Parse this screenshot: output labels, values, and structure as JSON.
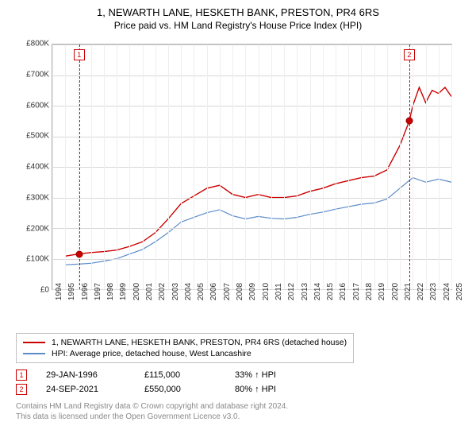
{
  "title": "1, NEWARTH LANE, HESKETH BANK, PRESTON, PR4 6RS",
  "subtitle": "Price paid vs. HM Land Registry's House Price Index (HPI)",
  "chart": {
    "type": "line",
    "background_color": "#ffffff",
    "grid_color": "#d8d8d8",
    "axis_color": "#b0b0b0",
    "label_fontsize": 10,
    "title_fontsize": 13,
    "x": {
      "min": 1994,
      "max": 2025,
      "tick_step": 1,
      "labels": [
        "1994",
        "1995",
        "1996",
        "1997",
        "1998",
        "1999",
        "2000",
        "2001",
        "2002",
        "2003",
        "2004",
        "2005",
        "2006",
        "2007",
        "2008",
        "2009",
        "2010",
        "2011",
        "2012",
        "2013",
        "2014",
        "2015",
        "2016",
        "2017",
        "2018",
        "2019",
        "2020",
        "2021",
        "2022",
        "2023",
        "2024",
        "2025"
      ]
    },
    "y": {
      "min": 0,
      "max": 800000,
      "tick_step": 100000,
      "labels": [
        "£0",
        "£100K",
        "£200K",
        "£300K",
        "£400K",
        "£500K",
        "£600K",
        "£700K",
        "£800K"
      ]
    },
    "series": [
      {
        "id": "price_paid",
        "label": "1, NEWARTH LANE, HESKETH BANK, PRESTON, PR4 6RS (detached house)",
        "color": "#cc0000",
        "line_width": 1.4,
        "points": [
          [
            1995,
            108000
          ],
          [
            1996,
            115000
          ],
          [
            1997,
            120000
          ],
          [
            1998,
            123000
          ],
          [
            1999,
            128000
          ],
          [
            2000,
            140000
          ],
          [
            2001,
            155000
          ],
          [
            2002,
            185000
          ],
          [
            2003,
            230000
          ],
          [
            2004,
            280000
          ],
          [
            2005,
            305000
          ],
          [
            2006,
            330000
          ],
          [
            2007,
            340000
          ],
          [
            2008,
            310000
          ],
          [
            2009,
            300000
          ],
          [
            2010,
            310000
          ],
          [
            2011,
            300000
          ],
          [
            2012,
            300000
          ],
          [
            2013,
            305000
          ],
          [
            2014,
            320000
          ],
          [
            2015,
            330000
          ],
          [
            2016,
            345000
          ],
          [
            2017,
            355000
          ],
          [
            2018,
            365000
          ],
          [
            2019,
            370000
          ],
          [
            2020,
            390000
          ],
          [
            2021,
            470000
          ],
          [
            2021.73,
            550000
          ],
          [
            2022,
            600000
          ],
          [
            2022.5,
            660000
          ],
          [
            2023,
            610000
          ],
          [
            2023.5,
            650000
          ],
          [
            2024,
            640000
          ],
          [
            2024.5,
            660000
          ],
          [
            2025,
            630000
          ]
        ]
      },
      {
        "id": "hpi",
        "label": "HPI: Average price, detached house, West Lancashire",
        "color": "#5b8bc9",
        "line_width": 1.2,
        "points": [
          [
            1995,
            80000
          ],
          [
            1996,
            82000
          ],
          [
            1997,
            85000
          ],
          [
            1998,
            92000
          ],
          [
            1999,
            100000
          ],
          [
            2000,
            115000
          ],
          [
            2001,
            130000
          ],
          [
            2002,
            155000
          ],
          [
            2003,
            185000
          ],
          [
            2004,
            220000
          ],
          [
            2005,
            235000
          ],
          [
            2006,
            250000
          ],
          [
            2007,
            260000
          ],
          [
            2008,
            240000
          ],
          [
            2009,
            230000
          ],
          [
            2010,
            238000
          ],
          [
            2011,
            232000
          ],
          [
            2012,
            230000
          ],
          [
            2013,
            235000
          ],
          [
            2014,
            245000
          ],
          [
            2015,
            252000
          ],
          [
            2016,
            262000
          ],
          [
            2017,
            270000
          ],
          [
            2018,
            278000
          ],
          [
            2019,
            282000
          ],
          [
            2020,
            295000
          ],
          [
            2021,
            330000
          ],
          [
            2022,
            365000
          ],
          [
            2023,
            350000
          ],
          [
            2024,
            360000
          ],
          [
            2025,
            350000
          ]
        ]
      }
    ],
    "events": [
      {
        "n": "1",
        "year": 1996.08,
        "price": 115000,
        "date": "29-JAN-1996",
        "price_fmt": "£115,000",
        "delta": "33% ↑ HPI"
      },
      {
        "n": "2",
        "year": 2021.73,
        "price": 550000,
        "date": "24-SEP-2021",
        "price_fmt": "£550,000",
        "delta": "80% ↑ HPI"
      }
    ]
  },
  "legend_title_1": "1, NEWARTH LANE, HESKETH BANK, PRESTON, PR4 6RS (detached house)",
  "legend_title_2": "HPI: Average price, detached house, West Lancashire",
  "footer_line1": "Contains HM Land Registry data © Crown copyright and database right 2024.",
  "footer_line2": "This data is licensed under the Open Government Licence v3.0."
}
